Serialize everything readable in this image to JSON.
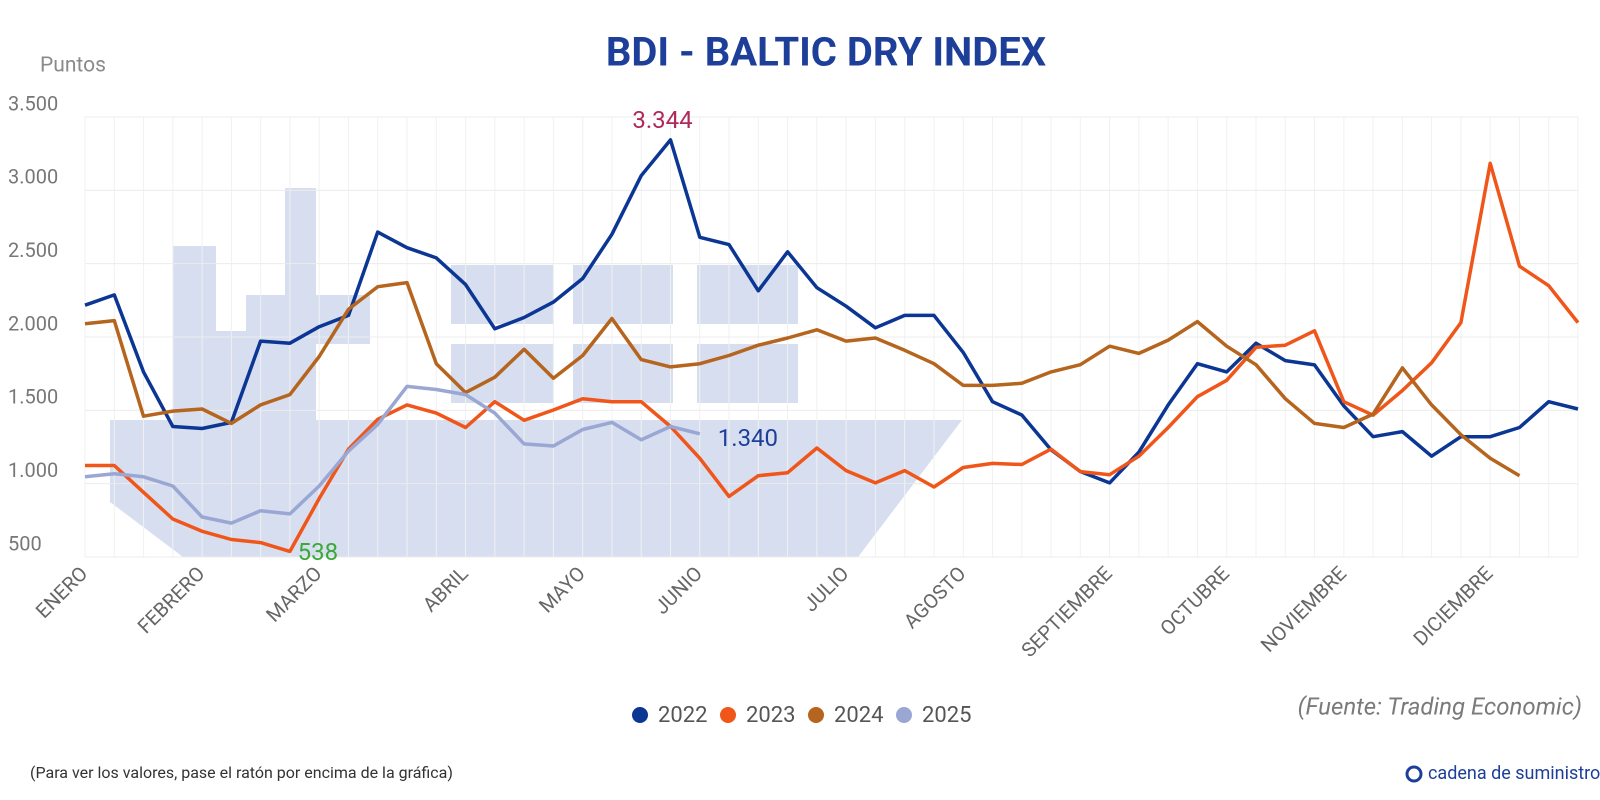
{
  "chart_data": {
    "type": "line",
    "title": "BDI - BALTIC DRY INDEX",
    "y_label": "Puntos",
    "source": "(Fuente: Trading Economic)",
    "note": "(Para ver los valores, pase el ratón por encima de la gráfica)",
    "brand": "cadena de suministro",
    "categories": [
      "ENERO",
      null,
      null,
      null,
      "FEBRERO",
      null,
      null,
      null,
      "MARZO",
      null,
      null,
      null,
      null,
      "ABRIL",
      null,
      null,
      null,
      "MAYO",
      null,
      null,
      null,
      "JUNIO",
      null,
      null,
      null,
      null,
      "JULIO",
      null,
      null,
      null,
      "AGOSTO",
      null,
      null,
      null,
      null,
      "SEPTIEMBRE",
      null,
      null,
      null,
      "OCTUBRE",
      null,
      null,
      null,
      "NOVIEMBRE",
      null,
      null,
      null,
      null,
      "DICIEMBRE",
      null,
      null,
      null
    ],
    "ylim": [
      500,
      3500
    ],
    "yticks": [
      500,
      {
        "value": 1000,
        "label": "1.000"
      },
      {
        "value": 1500,
        "label": "1.500"
      },
      {
        "value": 2000,
        "label": "2.000"
      },
      {
        "value": 2500,
        "label": "2.500"
      },
      {
        "value": 3000,
        "label": "3.000"
      },
      {
        "value": 3500,
        "label": "3.500"
      }
    ],
    "grid": true,
    "legend": "bottom",
    "series": [
      {
        "name": "2022",
        "color": "#0b3694",
        "label_color": "#b0285a",
        "values": [
          2217,
          2287,
          1762,
          1390,
          1376,
          1418,
          1972,
          1958,
          2070,
          2147,
          2715,
          2609,
          2539,
          2357,
          2056,
          2133,
          2238,
          2399,
          2700,
          3100,
          3344,
          2680,
          2630,
          2315,
          2581,
          2336,
          2210,
          2063,
          2147,
          2147,
          1895,
          1559,
          1468,
          1230,
          1083,
          1005,
          1215,
          1537,
          1818,
          1762,
          1958,
          1839,
          1810,
          1530,
          1320,
          1355,
          1187,
          1320,
          1320,
          1383,
          1559,
          1509
        ],
        "value_labels": [
          null,
          null,
          null,
          null,
          null,
          null,
          null,
          null,
          null,
          null,
          null,
          null,
          null,
          null,
          null,
          null,
          null,
          null,
          null,
          null,
          "3.344",
          null,
          null,
          null,
          null,
          null,
          null,
          null,
          null,
          null,
          null,
          null,
          null,
          null,
          null,
          null,
          null,
          null,
          null,
          null,
          null,
          null,
          null,
          null,
          null,
          null,
          null,
          null,
          null,
          null,
          null,
          null
        ]
      },
      {
        "name": "2023",
        "color": "#f0561a",
        "label_color": "#3aaa35",
        "values": [
          1124,
          1124,
          941,
          759,
          675,
          619,
          598,
          538,
          899,
          1236,
          1439,
          1537,
          1481,
          1383,
          1559,
          1432,
          1502,
          1579,
          1559,
          1559,
          1390,
          1173,
          913,
          1054,
          1075,
          1243,
          1089,
          1005,
          1089,
          977,
          1110,
          1138,
          1131,
          1236,
          1082,
          1061,
          1187,
          1383,
          1593,
          1705,
          1930,
          1944,
          2042,
          1559,
          1467,
          1635,
          1824,
          2098,
          3184,
          2483,
          2350,
          2098
        ],
        "value_labels": [
          null,
          null,
          null,
          null,
          null,
          null,
          null,
          "538",
          null,
          null,
          null,
          null,
          null,
          null,
          null,
          null,
          null,
          null,
          null,
          null,
          null,
          null,
          null,
          null,
          null,
          null,
          null,
          null,
          null,
          null,
          null,
          null,
          null,
          null,
          null,
          null,
          null,
          null,
          null,
          null,
          null,
          null,
          null,
          null,
          null,
          null,
          null,
          null,
          null,
          null,
          null,
          null
        ]
      },
      {
        "name": "2024",
        "color": "#b5651d",
        "values": [
          2091,
          2112,
          1460,
          1495,
          1509,
          1411,
          1537,
          1607,
          1867,
          2189,
          2343,
          2371,
          1818,
          1621,
          1726,
          1916,
          1719,
          1874,
          2126,
          1846,
          1796,
          1818,
          1874,
          1944,
          1993,
          2049,
          1972,
          1993,
          1909,
          1818,
          1670,
          1670,
          1684,
          1762,
          1811,
          1937,
          1888,
          1979,
          2105,
          1937,
          1811,
          1579,
          1411,
          1383,
          1474,
          1789,
          1537,
          1334,
          1173,
          1054,
          null,
          null
        ]
      },
      {
        "name": "2025",
        "color": "#9aa7d3",
        "label_color": "#1d3f9a",
        "values": [
          1047,
          1068,
          1047,
          984,
          773,
          731,
          815,
          794,
          984,
          1222,
          1404,
          1663,
          1642,
          1607,
          1481,
          1271,
          1257,
          1369,
          1418,
          1299,
          1390,
          1340,
          null,
          null,
          null,
          null,
          null,
          null,
          null,
          null,
          null,
          null,
          null,
          null,
          null,
          null,
          null,
          null,
          null,
          null,
          null,
          null,
          null,
          null,
          null,
          null,
          null,
          null,
          null,
          null,
          null,
          null
        ],
        "value_labels": [
          null,
          null,
          null,
          null,
          null,
          null,
          null,
          null,
          null,
          null,
          null,
          null,
          null,
          null,
          null,
          null,
          null,
          null,
          null,
          null,
          null,
          "1.340",
          null,
          null,
          null,
          null,
          null,
          null,
          null,
          null,
          null,
          null,
          null,
          null,
          null,
          null,
          null,
          null,
          null,
          null,
          null,
          null,
          null,
          null,
          null,
          null,
          null,
          null,
          null,
          null,
          null,
          null
        ]
      }
    ]
  }
}
